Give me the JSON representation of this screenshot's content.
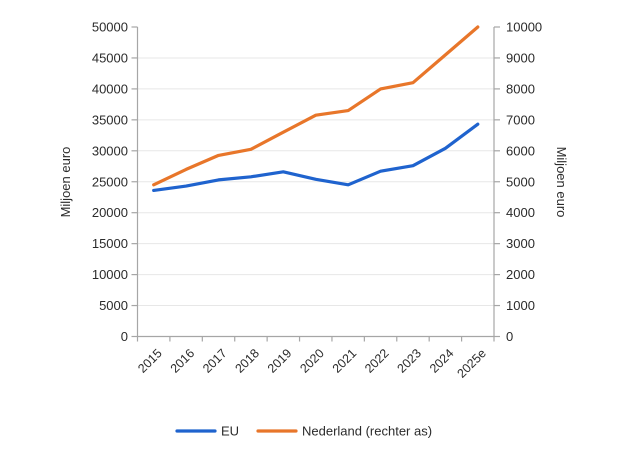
{
  "chart_data": {
    "type": "line",
    "categories": [
      "2015",
      "2016",
      "2017",
      "2018",
      "2019",
      "2020",
      "2021",
      "2022",
      "2023",
      "2024",
      "2025e"
    ],
    "series": [
      {
        "name": "EU",
        "axis": "left",
        "color": "#1f63ce",
        "values": [
          23600,
          24300,
          25300,
          25800,
          26600,
          25400,
          24500,
          26700,
          27600,
          30400,
          34300
        ]
      },
      {
        "name": "Nederland (rechter as)",
        "axis": "right",
        "color": "#e8762a",
        "values": [
          4900,
          5400,
          5850,
          6050,
          6600,
          7150,
          7300,
          8000,
          8200,
          9100,
          10000
        ]
      }
    ],
    "left_axis": {
      "title": "Miljoen euro",
      "min": 0,
      "max": 50000,
      "step": 5000,
      "ticks": [
        "0",
        "5000",
        "10000",
        "15000",
        "20000",
        "25000",
        "30000",
        "35000",
        "40000",
        "45000",
        "50000"
      ]
    },
    "right_axis": {
      "title": "Miljoen euro",
      "min": 0,
      "max": 10000,
      "step": 1000,
      "ticks": [
        "0",
        "1000",
        "2000",
        "3000",
        "4000",
        "5000",
        "6000",
        "7000",
        "8000",
        "9000",
        "10000"
      ]
    },
    "grid": true,
    "legend_position": "bottom",
    "grid_color": "#e7e7e7",
    "axis_color": "#a6a6a6",
    "tick_label_color": "#2b2b2b"
  }
}
